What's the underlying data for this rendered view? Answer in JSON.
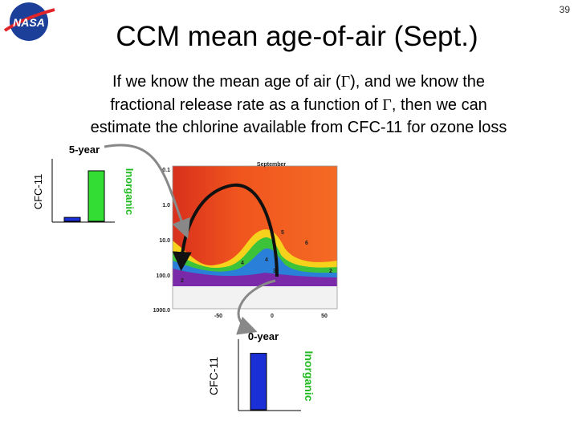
{
  "logo_text": "NASA",
  "slide_number": "39",
  "title": "CCM mean age-of-air (Sept.)",
  "body": {
    "lines": [
      [
        "If we know the mean age of air (",
        "Γ",
        "), and we know the"
      ],
      [
        "fractional release rate as a function of ",
        "Γ",
        ", then we can"
      ],
      [
        "estimate the chlorine available from CFC-11 for ozone loss"
      ]
    ]
  },
  "plot": {
    "title": "September",
    "y_ticks": [
      "0.1",
      "1.0",
      "10.0",
      "100.0",
      "1000.0"
    ],
    "x_ticks": [
      "-50",
      "0",
      "50"
    ],
    "contour_labels": [
      "5",
      "4",
      "4",
      "3",
      "2",
      "6",
      "2"
    ]
  },
  "bar_diagrams": [
    {
      "label": "5-year",
      "cfc11_label": "CFC-11",
      "inorganic_label": "Inorganic",
      "cfc11": 0.07,
      "inorganic": 0.9
    },
    {
      "label": "0-year",
      "cfc11_label": "CFC-11",
      "inorganic_label": "Inorganic",
      "cfc11": 0.88,
      "inorganic": 0
    }
  ]
}
